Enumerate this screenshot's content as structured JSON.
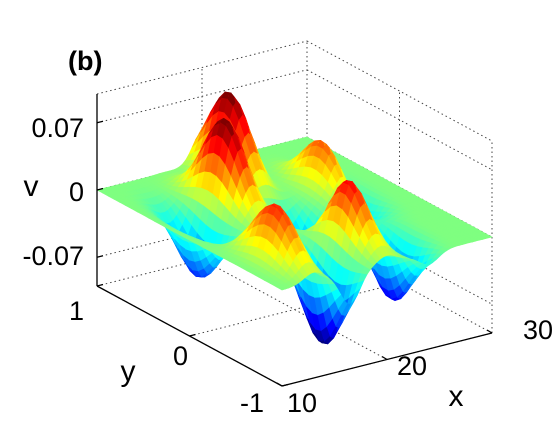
{
  "panel_label": "(b)",
  "chart_data": {
    "type": "surface",
    "title": "",
    "xlabel": "x",
    "ylabel": "y",
    "zlabel": "v",
    "xlim": [
      10,
      30
    ],
    "ylim": [
      -1,
      1
    ],
    "zlim": [
      -0.1,
      0.1
    ],
    "xticks": [
      "10",
      "20",
      "30"
    ],
    "yticks": [
      "-1",
      "0",
      "1"
    ],
    "zticks": [
      "0.07",
      "0",
      "-0.07"
    ],
    "xtick_values": [
      10,
      20,
      30
    ],
    "ytick_values": [
      -1,
      0,
      1
    ],
    "ztick_values": [
      0.07,
      0,
      -0.07
    ],
    "grid": true,
    "colormap": "jet",
    "peaks": [
      {
        "x": 13,
        "y": -0.6,
        "v": 0.06
      },
      {
        "x": 16.5,
        "y": 0.35,
        "v": 0.09
      },
      {
        "x": 20,
        "y": 0.7,
        "v": 0.09
      },
      {
        "x": 20,
        "y": -0.55,
        "v": 0.08
      },
      {
        "x": 25,
        "y": 0.2,
        "v": 0.07
      }
    ],
    "troughs": [
      {
        "x": 13,
        "y": 0.25,
        "v": -0.06
      },
      {
        "x": 16.5,
        "y": -0.7,
        "v": -0.09
      },
      {
        "x": 20.5,
        "y": -0.2,
        "v": -0.08
      },
      {
        "x": 24,
        "y": -0.6,
        "v": -0.07
      },
      {
        "x": 26,
        "y": 0.1,
        "v": -0.05
      }
    ]
  }
}
